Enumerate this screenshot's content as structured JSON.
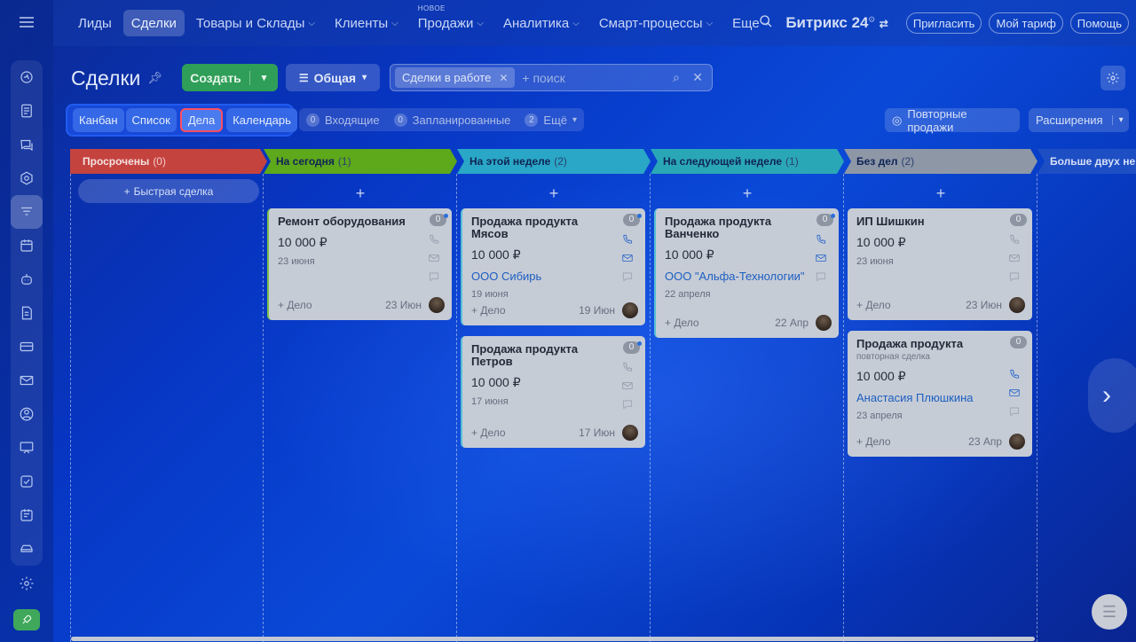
{
  "nav": {
    "items": [
      {
        "label": "Лиды",
        "chevron": false,
        "active": false
      },
      {
        "label": "Сделки",
        "chevron": false,
        "active": true
      },
      {
        "label": "Товары и Склады",
        "chevron": true,
        "active": false
      },
      {
        "label": "Клиенты",
        "chevron": true,
        "active": false
      },
      {
        "label": "Продажи",
        "chevron": true,
        "active": false,
        "tag": "НОВОЕ"
      },
      {
        "label": "Аналитика",
        "chevron": true,
        "active": false
      },
      {
        "label": "Смарт-процессы",
        "chevron": true,
        "active": false
      },
      {
        "label": "Еще",
        "chevron": true,
        "active": false
      }
    ],
    "brand": "Битрикс 24",
    "invite": "Пригласить",
    "tariff": "Мой тариф",
    "help": "Помощь"
  },
  "sidebar": {
    "icons": [
      "activity-icon",
      "feed-icon",
      "chat-icon",
      "hexagon-icon",
      "funnel-icon",
      "calendar-icon",
      "robot-icon",
      "document-icon",
      "card-icon",
      "mail-icon",
      "contacts-icon",
      "presentation-icon",
      "tasks-icon",
      "timeline-icon",
      "car-icon"
    ],
    "active_index": 4
  },
  "header": {
    "title": "Сделки",
    "create_label": "Создать",
    "filter_label": "Общая",
    "chip_label": "Сделки в работе",
    "search_placeholder": "+ поиск"
  },
  "views": {
    "items": [
      {
        "label": "Канбан",
        "active": false
      },
      {
        "label": "Список",
        "active": false
      },
      {
        "label": "Дела",
        "active": true
      },
      {
        "label": "Календарь",
        "active": false
      }
    ]
  },
  "counters": [
    {
      "n": "0",
      "label": "Входящие"
    },
    {
      "n": "0",
      "label": "Запланированные"
    },
    {
      "n": "2",
      "label": "Ещё"
    }
  ],
  "right_buttons": {
    "repeat": "Повторные продажи",
    "ext": "Расширения"
  },
  "quick_deal": "Быстрая сделка",
  "add_deal": "+ Дело",
  "columns": [
    {
      "title": "Просрочены",
      "count": "(0)",
      "color": "#c5433f",
      "cards": []
    },
    {
      "title": "На сегодня",
      "count": "(1)",
      "color": "#5ea81b",
      "cards": [
        {
          "title": "Ремонт оборудования",
          "price": "10 000 ₽",
          "link": "",
          "date": "23 июня",
          "foot_date": "23 Июн",
          "badge": "0",
          "dot": true,
          "blue": false,
          "h": 126
        }
      ]
    },
    {
      "title": "На этой неделе",
      "count": "(2)",
      "color": "#2aa7c6",
      "cards": [
        {
          "title": "Продажа продукта Мясов",
          "price": "10 000 ₽",
          "link": "ООО Сибирь",
          "date": "19 июня",
          "foot_date": "19 Июн",
          "badge": "0",
          "dot": true,
          "blue": true,
          "h": 132
        },
        {
          "title": "Продажа продукта Петров",
          "price": "10 000 ₽",
          "link": "",
          "date": "17 июня",
          "foot_date": "17 Июн",
          "badge": "0",
          "dot": true,
          "blue": false,
          "h": 126
        }
      ]
    },
    {
      "title": "На следующей неделе",
      "count": "(1)",
      "color": "#2aa7b6",
      "cards": [
        {
          "title": "Продажа продукта Ванченко",
          "price": "10 000 ₽",
          "link": "ООО \"Альфа-Технологии\"",
          "date": "22 апреля",
          "foot_date": "22 Апр",
          "badge": "0",
          "dot": true,
          "blue": true,
          "h": 146
        }
      ]
    },
    {
      "title": "Без дел",
      "count": "(2)",
      "color": "#8d97a6",
      "cards": [
        {
          "title": "ИП Шишкин",
          "price": "10 000 ₽",
          "link": "",
          "date": "23 июня",
          "foot_date": "23 Июн",
          "badge": "0",
          "dot": false,
          "blue": false,
          "h": 126
        },
        {
          "title": "Продажа продукта",
          "sub": "повторная сделка",
          "price": "10 000 ₽",
          "link": "Анастасия Плюшкина",
          "date": "23 апреля",
          "foot_date": "23 Апр",
          "badge": "0",
          "dot": false,
          "blue": true,
          "h": 142
        }
      ]
    },
    {
      "title": "Больше двух не",
      "count": "",
      "color": "#1e4ec4",
      "cards": []
    }
  ]
}
